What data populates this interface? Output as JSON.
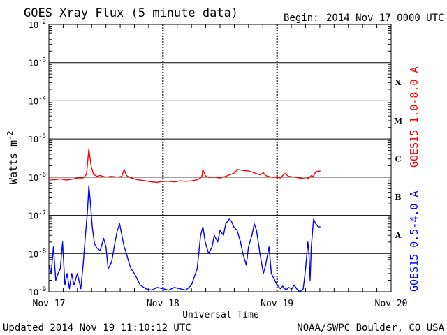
{
  "chart_data": {
    "type": "line",
    "title": "GOES Xray Flux (5 minute data)",
    "begin_label": "Begin:",
    "begin_value": "2014 Nov 17 0000 UTC",
    "ylabel": "Watts m",
    "ylabel_superscript": "-2",
    "xlabel": "Universal Time",
    "yscale": "log",
    "ylim": [
      1e-09,
      0.01
    ],
    "y_ticks": [
      {
        "base": "10",
        "exp": "-2",
        "value": 0.01
      },
      {
        "base": "10",
        "exp": "-3",
        "value": 0.001
      },
      {
        "base": "10",
        "exp": "-4",
        "value": 0.0001
      },
      {
        "base": "10",
        "exp": "-5",
        "value": 1e-05
      },
      {
        "base": "10",
        "exp": "-6",
        "value": 1e-06
      },
      {
        "base": "10",
        "exp": "-7",
        "value": 1e-07
      },
      {
        "base": "10",
        "exp": "-8",
        "value": 1e-08
      },
      {
        "base": "10",
        "exp": "-9",
        "value": 1e-09
      }
    ],
    "xlim": [
      0,
      3
    ],
    "x_ticks": [
      {
        "label": "Nov 17",
        "value": 0
      },
      {
        "label": "Nov 18",
        "value": 1
      },
      {
        "label": "Nov 19",
        "value": 2
      },
      {
        "label": "Nov 20",
        "value": 3
      }
    ],
    "flare_classes": [
      {
        "label": "X",
        "low": 0.0001,
        "high": 0.001
      },
      {
        "label": "M",
        "low": 1e-05,
        "high": 0.0001
      },
      {
        "label": "C",
        "low": 1e-06,
        "high": 1e-05
      },
      {
        "label": "B",
        "low": 1e-07,
        "high": 1e-06
      },
      {
        "label": "A",
        "low": 1e-08,
        "high": 1e-07
      }
    ],
    "grid": true,
    "series": [
      {
        "name": "GOES15 1.0-8.0 A",
        "color": "#ff0000",
        "x": [
          0,
          0.05,
          0.1,
          0.15,
          0.2,
          0.25,
          0.3,
          0.33,
          0.35,
          0.37,
          0.39,
          0.42,
          0.45,
          0.5,
          0.55,
          0.6,
          0.64,
          0.66,
          0.68,
          0.72,
          0.78,
          0.85,
          0.9,
          0.95,
          1.0,
          1.05,
          1.1,
          1.15,
          1.2,
          1.25,
          1.3,
          1.34,
          1.35,
          1.37,
          1.4,
          1.45,
          1.5,
          1.55,
          1.6,
          1.63,
          1.65,
          1.7,
          1.75,
          1.8,
          1.85,
          1.88,
          1.9,
          1.95,
          2.0,
          2.03,
          2.05,
          2.07,
          2.1,
          2.15,
          2.2,
          2.25,
          2.28,
          2.3,
          2.32,
          2.34,
          2.38
        ],
        "y": [
          9e-07,
          8.5e-07,
          9e-07,
          8.4e-07,
          8.8e-07,
          9.5e-07,
          9.5e-07,
          1.2e-06,
          5.5e-06,
          2e-06,
          1.2e-06,
          1.05e-06,
          1.1e-06,
          1e-06,
          1.05e-06,
          1e-06,
          1.05e-06,
          1.6e-06,
          1.1e-06,
          9.5e-07,
          8.5e-07,
          8e-07,
          7.5e-07,
          7.3e-07,
          7.8e-07,
          7.8e-07,
          7.5e-07,
          8e-07,
          7.8e-07,
          8e-07,
          8.5e-07,
          1e-06,
          1.6e-06,
          1.1e-06,
          9.8e-07,
          1e-06,
          9.5e-07,
          1.05e-06,
          1.2e-06,
          1.3e-06,
          1.6e-06,
          1.5e-06,
          1.45e-06,
          1.3e-06,
          1.15e-06,
          1.3e-06,
          1.1e-06,
          1e-06,
          9.8e-07,
          9.5e-07,
          1.1e-06,
          1.25e-06,
          1.05e-06,
          1e-06,
          9.5e-07,
          9e-07,
          9.5e-07,
          1.1e-06,
          1.05e-06,
          1.4e-06,
          1.45e-06
        ]
      },
      {
        "name": "GOES15 0.5-4.0 A",
        "color": "#0000ff",
        "x": [
          0,
          0.02,
          0.04,
          0.06,
          0.08,
          0.1,
          0.12,
          0.14,
          0.16,
          0.18,
          0.2,
          0.22,
          0.25,
          0.28,
          0.3,
          0.32,
          0.34,
          0.35,
          0.36,
          0.38,
          0.4,
          0.42,
          0.45,
          0.48,
          0.5,
          0.52,
          0.55,
          0.58,
          0.6,
          0.62,
          0.64,
          0.66,
          0.68,
          0.7,
          0.72,
          0.75,
          0.78,
          0.8,
          0.85,
          0.9,
          0.95,
          1.0,
          1.05,
          1.1,
          1.15,
          1.2,
          1.25,
          1.3,
          1.33,
          1.35,
          1.37,
          1.4,
          1.43,
          1.45,
          1.48,
          1.5,
          1.53,
          1.55,
          1.58,
          1.6,
          1.62,
          1.65,
          1.68,
          1.7,
          1.73,
          1.75,
          1.78,
          1.8,
          1.82,
          1.85,
          1.88,
          1.9,
          1.93,
          1.95,
          1.98,
          2.0,
          2.03,
          2.05,
          2.08,
          2.1,
          2.13,
          2.15,
          2.18,
          2.2,
          2.23,
          2.25,
          2.27,
          2.28,
          2.29,
          2.3,
          2.32,
          2.34,
          2.36,
          2.38
        ],
        "y": [
          5e-09,
          3e-09,
          1.5e-08,
          2e-09,
          3e-09,
          4e-09,
          2e-08,
          1.5e-09,
          3e-09,
          1.2e-09,
          3e-09,
          1.5e-09,
          3e-09,
          1.2e-09,
          5e-09,
          3e-08,
          1.5e-07,
          6e-07,
          3e-07,
          5e-08,
          1.8e-08,
          1.4e-08,
          1.2e-08,
          2.5e-08,
          1.5e-08,
          4e-09,
          6e-09,
          2e-08,
          4e-08,
          6e-08,
          3e-08,
          1.5e-08,
          1e-08,
          6e-09,
          4e-09,
          3e-09,
          2e-09,
          1.5e-09,
          1.2e-09,
          1.1e-09,
          1.3e-09,
          1.2e-09,
          1.1e-09,
          1.3e-09,
          1.2e-09,
          1.1e-09,
          1.5e-09,
          4e-09,
          3e-08,
          5e-08,
          2e-08,
          1e-08,
          1.5e-08,
          3e-08,
          2e-08,
          4e-08,
          3e-08,
          6e-08,
          8e-08,
          7e-08,
          5e-08,
          4e-08,
          2e-08,
          1e-08,
          5e-09,
          1.5e-08,
          3e-08,
          6e-08,
          4e-08,
          1e-08,
          3e-09,
          5e-09,
          1.5e-08,
          3e-09,
          2e-09,
          1.5e-09,
          1.2e-09,
          1.4e-09,
          1.1e-09,
          1.3e-09,
          1.2e-09,
          1.5e-09,
          1.1e-09,
          1e-09,
          1.2e-09,
          4e-09,
          2e-08,
          1e-08,
          2e-09,
          1.5e-08,
          8e-08,
          6e-08,
          5e-08,
          5e-08
        ]
      }
    ]
  },
  "footer": {
    "updated": "Updated 2014 Nov 19 11:10:12 UTC",
    "source": "NOAA/SWPC Boulder, CO USA"
  }
}
